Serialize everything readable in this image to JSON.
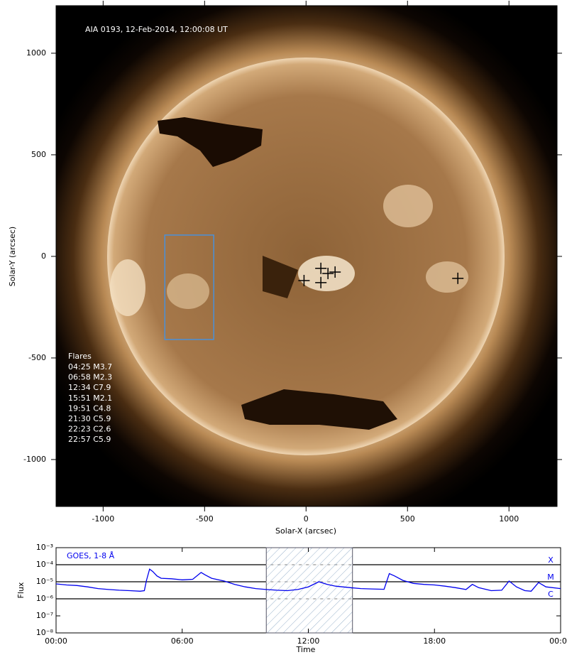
{
  "chart_data": [
    {
      "type": "image",
      "annotation": "AIA 0193, 12-Feb-2014, 12:00:08 UT",
      "xlabel": "Solar-X (arcsec)",
      "ylabel": "Solar-Y (arcsec)",
      "xlim": [
        -1232,
        1237
      ],
      "ylim": [
        -1231,
        1234
      ],
      "xticks": [
        -1000,
        -500,
        0,
        500,
        1000
      ],
      "yticks": [
        -1000,
        -500,
        0,
        500,
        1000
      ],
      "markers": {
        "color": "#000000",
        "x": [
          -10,
          73,
          73,
          108,
          143,
          748
        ],
        "y": [
          -119,
          -59,
          -129,
          -84,
          -77,
          -108
        ]
      },
      "box": {
        "color": "#4a90d9",
        "x": [
          -696,
          -455
        ],
        "y": [
          -409,
          105
        ]
      },
      "flares_title": "Flares",
      "flares": [
        "04:25 M3.7",
        "06:58 M2.3",
        "12:34 C7.9",
        "15:51 M2.1",
        "19:51 C4.8",
        "21:30 C5.9",
        "22:23 C2.6",
        "22:57 C5.9"
      ]
    },
    {
      "type": "line",
      "yscale": "log",
      "xlabel": "Time",
      "ylabel": "Flux",
      "xlim": [
        0,
        24
      ],
      "ylim": [
        1e-08,
        0.001
      ],
      "xticks": [
        {
          "value": 0,
          "label": "00:00"
        },
        {
          "value": 6,
          "label": "06:00"
        },
        {
          "value": 12,
          "label": "12:00"
        },
        {
          "value": 18,
          "label": "18:00"
        },
        {
          "value": 24,
          "label": "00:00"
        }
      ],
      "yticks": [
        {
          "value": 1e-08,
          "label": "10⁻⁸"
        },
        {
          "value": 1e-07,
          "label": "10⁻⁷"
        },
        {
          "value": 1e-06,
          "label": "10⁻⁶"
        },
        {
          "value": 1e-05,
          "label": "10⁻⁵"
        },
        {
          "value": 0.0001,
          "label": "10⁻⁴"
        },
        {
          "value": 0.001,
          "label": "10⁻³"
        }
      ],
      "highlight_x": [
        10,
        14.1
      ],
      "flare_classes": [
        {
          "label": "X",
          "value": 0.0001
        },
        {
          "label": "M",
          "value": 1e-05
        },
        {
          "label": "C",
          "value": 1e-06
        }
      ],
      "series": [
        {
          "name": "GOES, 1-8 Å",
          "color": "#0000ee",
          "x": [
            0,
            0.5,
            1,
            1.5,
            2,
            2.5,
            3,
            3.5,
            4,
            4.2,
            4.3,
            4.45,
            4.6,
            4.8,
            5,
            5.5,
            6,
            6.5,
            6.9,
            7.1,
            7.4,
            8,
            8.5,
            9,
            9.5,
            10,
            10.5,
            11,
            11.5,
            12,
            12.5,
            12.9,
            13.3,
            14,
            14.5,
            15,
            15.6,
            15.85,
            16.1,
            16.5,
            17,
            17.5,
            18,
            18.5,
            19,
            19.5,
            19.8,
            20.1,
            20.7,
            21.2,
            21.55,
            21.9,
            22.3,
            22.6,
            22.95,
            23.3,
            24
          ],
          "values": [
            7.5e-06,
            6.5e-06,
            6e-06,
            5e-06,
            4e-06,
            3.5e-06,
            3.2e-06,
            3e-06,
            2.8e-06,
            3e-06,
            1.2e-05,
            5.5e-05,
            4e-05,
            2.2e-05,
            1.6e-05,
            1.5e-05,
            1.3e-05,
            1.4e-05,
            3.5e-05,
            2.5e-05,
            1.6e-05,
            1.1e-05,
            7e-06,
            5e-06,
            4e-06,
            3.5e-06,
            3.2e-06,
            3e-06,
            3.5e-06,
            5e-06,
            1e-05,
            7e-06,
            5.5e-06,
            4.5e-06,
            4e-06,
            3.8e-06,
            3.6e-06,
            3e-05,
            2.2e-05,
            1.2e-05,
            8e-06,
            7e-06,
            6.5e-06,
            5.5e-06,
            4.5e-06,
            3.5e-06,
            7e-06,
            4.5e-06,
            3e-06,
            3.2e-06,
            1.1e-05,
            5e-06,
            3e-06,
            2.8e-06,
            9e-06,
            5e-06,
            4e-06
          ]
        }
      ]
    }
  ]
}
